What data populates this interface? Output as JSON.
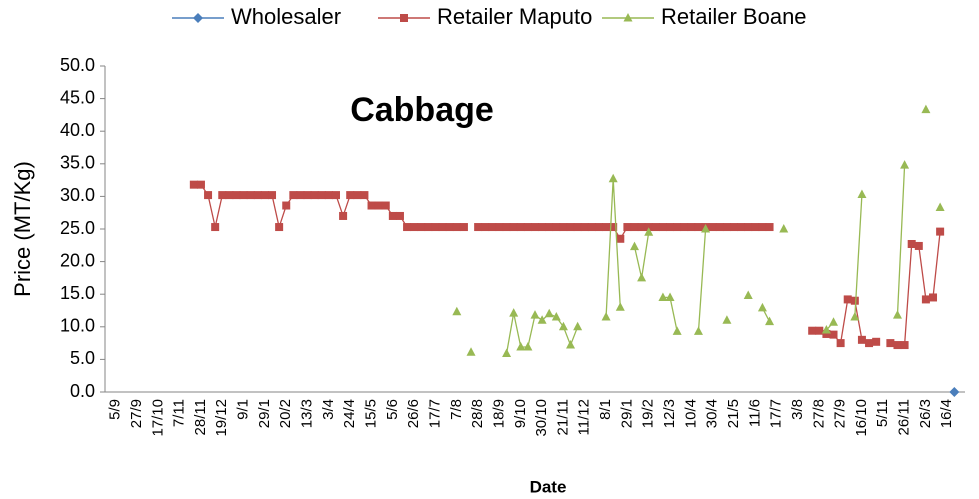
{
  "chart_data": {
    "type": "line",
    "title": "Cabbage",
    "x_label": "Date",
    "y_label": "Price (MT/Kg)",
    "legend": "top",
    "categories": [
      null,
      "5/9",
      null,
      null,
      "27/9",
      null,
      null,
      "17/10",
      null,
      null,
      "7/11",
      null,
      null,
      "28/11",
      null,
      null,
      "19/12",
      null,
      null,
      "9/1",
      null,
      null,
      "29/1",
      null,
      null,
      "20/2",
      null,
      null,
      "13/3",
      null,
      null,
      "3/4",
      null,
      null,
      "24/4",
      null,
      null,
      "15/5",
      null,
      null,
      "5/6",
      null,
      null,
      "26/6",
      null,
      null,
      "17/7",
      null,
      null,
      "7/8",
      null,
      null,
      "28/8",
      null,
      null,
      "18/9",
      null,
      null,
      "9/10",
      null,
      null,
      "30/10",
      null,
      null,
      "21/11",
      null,
      null,
      "11/12",
      null,
      null,
      "8/1",
      null,
      null,
      "29/1",
      null,
      null,
      "19/2",
      null,
      null,
      "12/3",
      null,
      null,
      "10/4",
      null,
      null,
      "30/4",
      null,
      null,
      "21/5",
      null,
      null,
      "11/6",
      null,
      null,
      "17/7",
      null,
      null,
      "3/8",
      null,
      null,
      "27/8",
      null,
      null,
      "27/9",
      null,
      null,
      "16/10",
      null,
      null,
      "5/11",
      null,
      null,
      "26/11",
      null,
      null,
      "26/3",
      null,
      null,
      "16/4",
      null,
      null
    ],
    "ylim": [
      0,
      50
    ],
    "yticks": [
      {
        "value": 0,
        "label": "0.0"
      },
      {
        "value": 5,
        "label": "5.0"
      },
      {
        "value": 10,
        "label": "10.0"
      },
      {
        "value": 15,
        "label": "15.0"
      },
      {
        "value": 20,
        "label": "20.0"
      },
      {
        "value": 25,
        "label": "25.0"
      },
      {
        "value": 30,
        "label": "30.0"
      },
      {
        "value": 35,
        "label": "35.0"
      },
      {
        "value": 40,
        "label": "40.0"
      },
      {
        "value": 45,
        "label": "45.0"
      },
      {
        "value": 50,
        "label": "50.0"
      }
    ],
    "series": [
      {
        "name": "Wholesaler",
        "color": "#4a7ebb",
        "marker": "diamond",
        "values": [
          null,
          null,
          null,
          null,
          null,
          null,
          null,
          null,
          null,
          null,
          null,
          null,
          null,
          null,
          null,
          null,
          null,
          null,
          null,
          null,
          null,
          null,
          null,
          null,
          null,
          null,
          null,
          null,
          null,
          null,
          null,
          null,
          null,
          null,
          null,
          null,
          null,
          null,
          null,
          null,
          null,
          null,
          null,
          null,
          null,
          null,
          null,
          null,
          null,
          null,
          null,
          null,
          null,
          null,
          null,
          null,
          null,
          null,
          null,
          null,
          null,
          null,
          null,
          null,
          null,
          null,
          null,
          null,
          null,
          null,
          null,
          null,
          null,
          null,
          null,
          null,
          null,
          null,
          null,
          null,
          null,
          null,
          null,
          null,
          null,
          null,
          null,
          null,
          null,
          null,
          null,
          null,
          null,
          null,
          null,
          null,
          null,
          null,
          null,
          null,
          null,
          null,
          null,
          null,
          null,
          null,
          null,
          null,
          null,
          null,
          null,
          null,
          null,
          null,
          null,
          null,
          null,
          null,
          null,
          0,
          null
        ]
      },
      {
        "name": "Retailer Maputo",
        "color": "#be4b48",
        "marker": "square",
        "values": [
          null,
          null,
          null,
          null,
          null,
          null,
          null,
          null,
          null,
          null,
          null,
          null,
          31.8,
          31.8,
          30.2,
          25.3,
          30.2,
          30.2,
          30.2,
          30.2,
          30.2,
          30.2,
          30.2,
          30.2,
          25.3,
          28.6,
          30.2,
          30.2,
          30.2,
          30.2,
          30.2,
          30.2,
          30.2,
          27,
          30.2,
          30.2,
          30.2,
          28.6,
          28.6,
          28.6,
          27,
          27,
          25.3,
          25.3,
          25.3,
          25.3,
          25.3,
          25.3,
          25.3,
          25.3,
          25.3,
          null,
          25.3,
          25.3,
          25.3,
          25.3,
          25.3,
          25.3,
          25.3,
          25.3,
          25.3,
          25.3,
          25.3,
          25.3,
          25.3,
          25.3,
          25.3,
          25.3,
          25.3,
          25.3,
          25.3,
          25.3,
          23.5,
          25.3,
          25.3,
          25.3,
          25.3,
          25.3,
          25.3,
          25.3,
          25.3,
          25.3,
          25.3,
          25.3,
          25.3,
          25.3,
          25.3,
          25.3,
          25.3,
          25.3,
          25.3,
          25.3,
          25.3,
          25.3,
          null,
          null,
          null,
          null,
          null,
          9.4,
          9.4,
          8.9,
          8.8,
          7.5,
          14.2,
          14,
          8,
          7.5,
          7.7,
          null,
          7.5,
          7.2,
          7.2,
          22.7,
          22.4,
          14.2,
          14.5,
          24.6,
          null,
          null,
          null
        ]
      },
      {
        "name": "Retailer Boane",
        "color": "#98b954",
        "marker": "triangle",
        "values": [
          null,
          null,
          null,
          null,
          null,
          null,
          null,
          null,
          null,
          null,
          null,
          null,
          null,
          null,
          null,
          null,
          null,
          null,
          null,
          null,
          null,
          null,
          null,
          null,
          null,
          null,
          null,
          null,
          null,
          null,
          null,
          null,
          null,
          null,
          null,
          null,
          null,
          null,
          null,
          null,
          null,
          null,
          null,
          null,
          null,
          null,
          null,
          null,
          null,
          12.3,
          null,
          6.1,
          null,
          null,
          null,
          null,
          5.9,
          12.1,
          6.9,
          6.9,
          11.8,
          11,
          12,
          11.5,
          10,
          7.2,
          10,
          null,
          null,
          null,
          11.5,
          32.7,
          13,
          null,
          22.3,
          17.5,
          24.5,
          null,
          14.5,
          14.5,
          9.3,
          null,
          null,
          9.3,
          25,
          null,
          null,
          11,
          null,
          null,
          14.8,
          null,
          12.9,
          10.8,
          null,
          25,
          null,
          null,
          null,
          null,
          null,
          9.5,
          10.7,
          null,
          null,
          11.5,
          30.3,
          null,
          null,
          null,
          null,
          11.8,
          34.8,
          null,
          null,
          43.3,
          null,
          28.3,
          null,
          null,
          null
        ]
      }
    ]
  }
}
